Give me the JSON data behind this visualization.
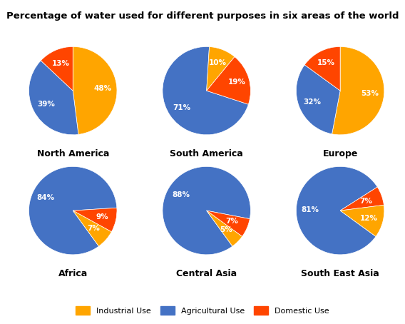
{
  "title": "Percentage of water used for different purposes in six areas of the world",
  "title_fontsize": 9.5,
  "regions": [
    {
      "name": "North America",
      "values": [
        48,
        39,
        13
      ],
      "labels": [
        "48%",
        "39%",
        "13%"
      ],
      "colors": [
        "#FFA500",
        "#4472C4",
        "#FF4500"
      ],
      "start_angle": 90
    },
    {
      "name": "South America",
      "values": [
        71,
        10,
        19
      ],
      "labels": [
        "71%",
        "10%",
        "19%"
      ],
      "colors": [
        "#4472C4",
        "#FFA500",
        "#FF4500"
      ],
      "start_angle": -18
    },
    {
      "name": "Europe",
      "values": [
        53,
        32,
        15
      ],
      "labels": [
        "53%",
        "32%",
        "15%"
      ],
      "colors": [
        "#FFA500",
        "#4472C4",
        "#FF4500"
      ],
      "start_angle": 90
    },
    {
      "name": "Africa",
      "values": [
        84,
        9,
        7
      ],
      "labels": [
        "84%",
        "9%",
        "7%"
      ],
      "colors": [
        "#4472C4",
        "#FF4500",
        "#FFA500"
      ],
      "start_angle": -54
    },
    {
      "name": "Central Asia",
      "values": [
        88,
        7,
        5
      ],
      "labels": [
        "88%",
        "7%",
        "5%"
      ],
      "colors": [
        "#4472C4",
        "#FF4500",
        "#FFA500"
      ],
      "start_angle": -54
    },
    {
      "name": "South East Asia",
      "values": [
        81,
        7,
        12
      ],
      "labels": [
        "81%",
        "7%",
        "12%"
      ],
      "colors": [
        "#4472C4",
        "#FF4500",
        "#FFA500"
      ],
      "start_angle": -36
    }
  ],
  "legend_colors": [
    "#FFA500",
    "#4472C4",
    "#FF4500"
  ],
  "legend_labels": [
    "Industrial Use",
    "Agricultural Use",
    "Domestic Use"
  ],
  "background_color": "#FFFFFF",
  "label_fontsize": 7.5,
  "region_fontsize": 9,
  "region_fontweight": "bold"
}
